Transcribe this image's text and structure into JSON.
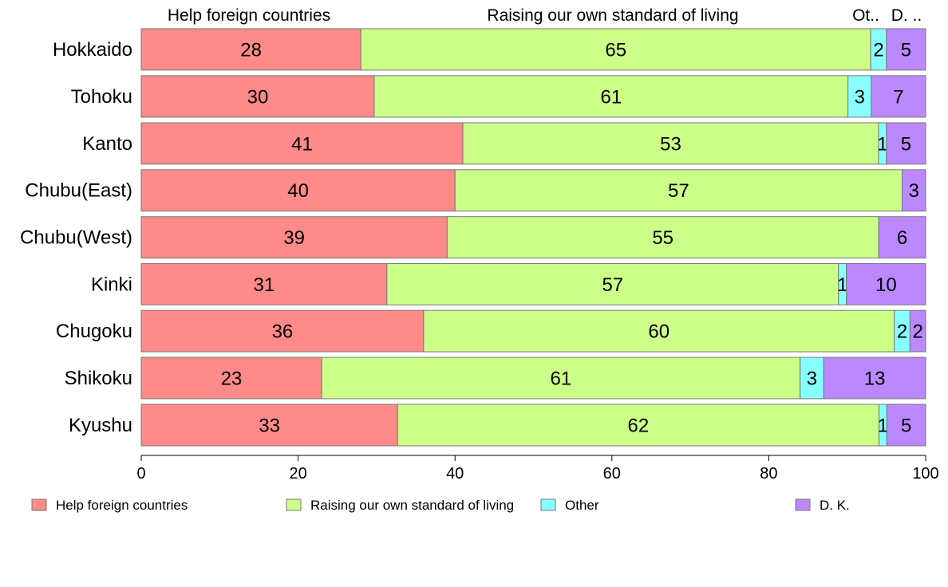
{
  "chart_data": {
    "type": "bar",
    "orientation": "horizontal",
    "stacked": true,
    "categories": [
      "Hokkaido",
      "Tohoku",
      "Kanto",
      "Chubu(East)",
      "Chubu(West)",
      "Kinki",
      "Chugoku",
      "Shikoku",
      "Kyushu"
    ],
    "series": [
      {
        "name": "Help foreign countries",
        "color": "#ff8a8a",
        "values": [
          28,
          30,
          41,
          40,
          39,
          31,
          36,
          23,
          33
        ]
      },
      {
        "name": "Raising our own standard of living",
        "color": "#ccff88",
        "values": [
          65,
          61,
          53,
          57,
          55,
          57,
          60,
          61,
          62
        ]
      },
      {
        "name": "Other",
        "color": "#88ffff",
        "values": [
          2,
          3,
          1,
          0,
          0,
          1,
          2,
          3,
          1
        ]
      },
      {
        "name": "D. K.",
        "color": "#bb88ff",
        "values": [
          5,
          7,
          5,
          3,
          6,
          10,
          2,
          13,
          5
        ]
      }
    ],
    "column_labels": [
      "Help foreign countries",
      "Raising our own standard of living",
      "Ot..",
      "D. .."
    ],
    "xlim": [
      0,
      100
    ],
    "xticks": [
      0,
      20,
      40,
      60,
      80,
      100
    ],
    "legend_position": "bottom",
    "grid": false
  }
}
